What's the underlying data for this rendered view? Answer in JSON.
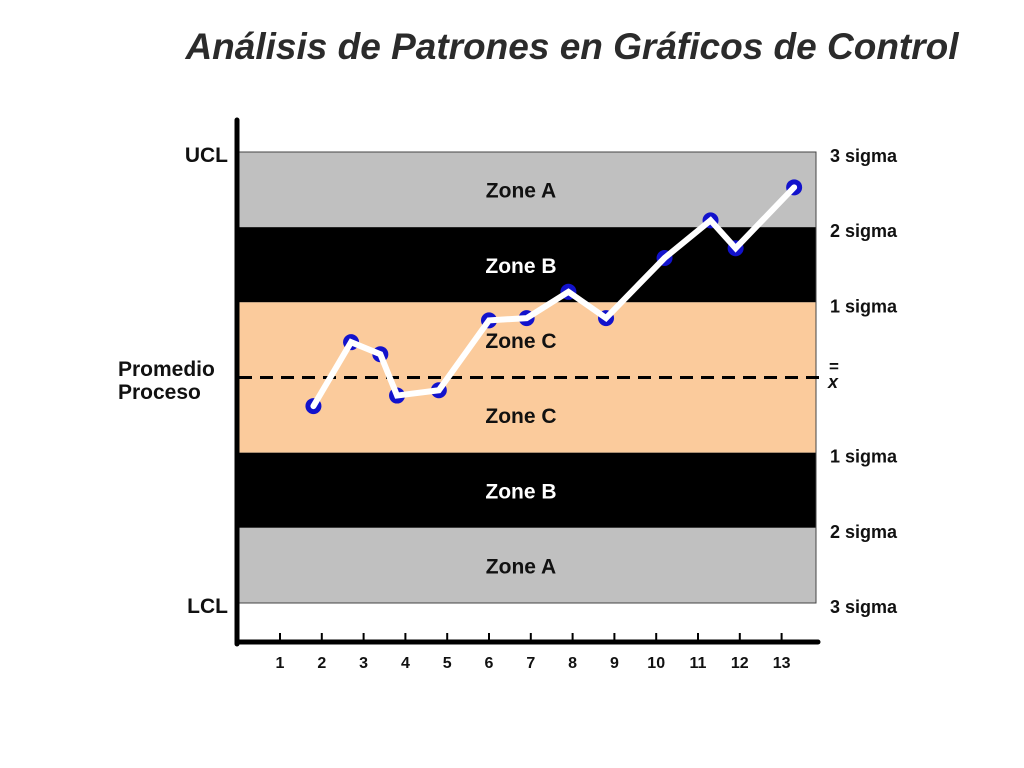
{
  "title": "Análisis de Patrones en Gráficos de Control",
  "chart_data": {
    "type": "line",
    "y_center": 0,
    "ylim": [
      -3,
      3
    ],
    "x_ticks": [
      1,
      2,
      3,
      4,
      5,
      6,
      7,
      8,
      9,
      10,
      11,
      12,
      13
    ],
    "x": [
      1.8,
      2.7,
      3.4,
      3.8,
      4.8,
      6.0,
      6.9,
      7.9,
      8.8,
      10.2,
      11.3,
      11.9,
      13.3
    ],
    "y": [
      -0.38,
      0.47,
      0.31,
      -0.24,
      -0.17,
      0.76,
      0.79,
      1.14,
      0.79,
      1.59,
      2.09,
      1.72,
      2.53
    ],
    "left_labels": {
      "ucl": "UCL",
      "lcl": "LCL",
      "center_line1": "Promedio",
      "center_line2": "Proceso"
    },
    "center_symbol": {
      "bars": "=",
      "letter": "x"
    },
    "right_labels": [
      "3 sigma",
      "2 sigma",
      "1 sigma",
      "1 sigma",
      "2 sigma",
      "3 sigma"
    ],
    "zones": [
      {
        "name": "Zone A",
        "from": 2,
        "to": 3,
        "color": "#c0c0c0",
        "text_color": "#111111"
      },
      {
        "name": "Zone B",
        "from": 1,
        "to": 2,
        "color": "#000000",
        "text_color": "#ffffff"
      },
      {
        "name": "Zone C",
        "from": 0,
        "to": 1,
        "color": "#fbcb9c",
        "text_color": "#111111"
      },
      {
        "name": "Zone C",
        "from": -1,
        "to": 0,
        "color": "#fbcb9c",
        "text_color": "#111111"
      },
      {
        "name": "Zone B",
        "from": -2,
        "to": -1,
        "color": "#000000",
        "text_color": "#ffffff"
      },
      {
        "name": "Zone A",
        "from": -3,
        "to": -2,
        "color": "#c0c0c0",
        "text_color": "#111111"
      }
    ],
    "line_color": "#ffffff",
    "point_color": "#1212cc",
    "grid": false,
    "legend": "none"
  }
}
